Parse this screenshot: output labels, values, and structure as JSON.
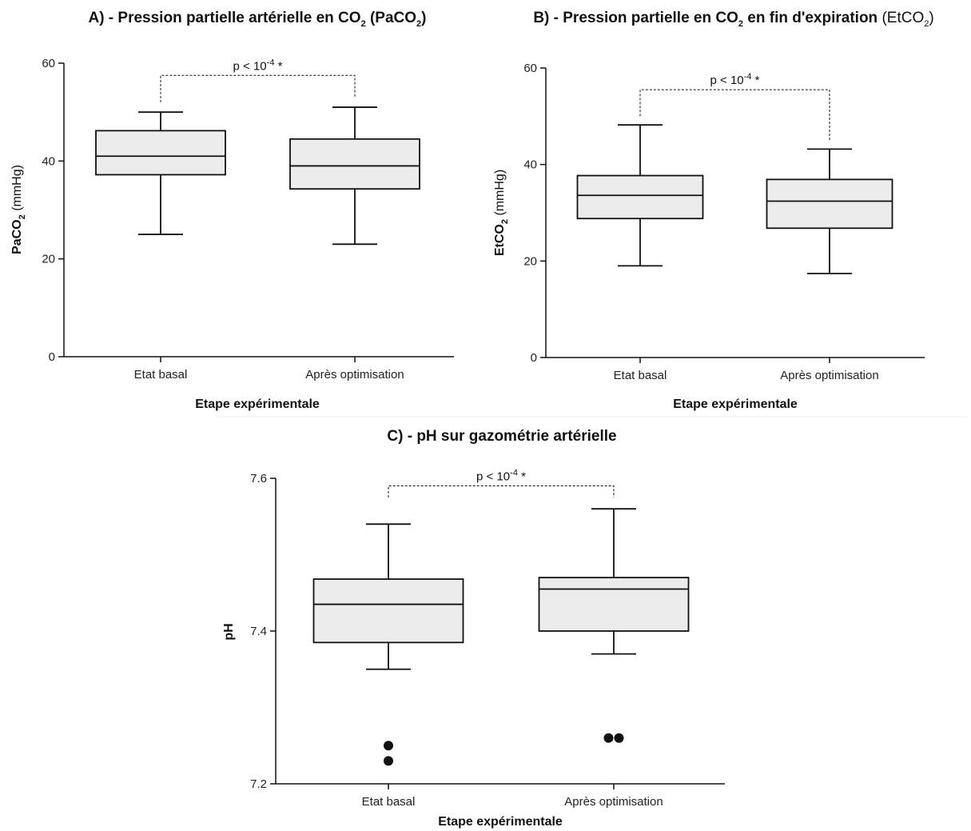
{
  "colors": {
    "box_fill": "#ececec",
    "stroke": "#111111",
    "divider": "#eeeeee"
  },
  "chart_data": [
    {
      "id": "A",
      "type": "box",
      "title": {
        "prefix": "A) - Pression partielle artérielle en CO",
        "sub": "2",
        "suffix": " (PaCO",
        "sub2": "2",
        "close": ")"
      },
      "xlabel": "Etape expérimentale",
      "ylabel": {
        "bold": "PaCO",
        "sub": "2",
        "regular": " (mmHg)"
      },
      "ylim": [
        0,
        60
      ],
      "yticks": [
        "0",
        "20",
        "40",
        "60"
      ],
      "ytick_values": [
        0,
        20,
        40,
        60
      ],
      "categories": [
        "Etat basal",
        "Après optimisation"
      ],
      "boxes": [
        {
          "category": "Etat basal",
          "whisker_low": 25,
          "q1": 37.2,
          "median": 41,
          "q3": 46.2,
          "whisker_high": 50,
          "outliers": []
        },
        {
          "category": "Après optimisation",
          "whisker_low": 23,
          "q1": 34.3,
          "median": 39,
          "q3": 44.5,
          "whisker_high": 51,
          "outliers": []
        }
      ],
      "significance": {
        "base": "p < 10",
        "exp": "-4",
        "tail": " *",
        "y": 57.5,
        "drop_to": [
          52,
          53
        ]
      }
    },
    {
      "id": "B",
      "type": "box",
      "title": {
        "prefix": "B) - Pression partielle en CO",
        "sub": "2",
        "suffix": " en fin d'expiration ",
        "paren": "(EtCO",
        "sub2": "2",
        "close": ")"
      },
      "xlabel": "Etape expérimentale",
      "ylabel": {
        "bold": "EtCO",
        "sub": "2",
        "regular": " (mmHg)"
      },
      "ylim": [
        0,
        60
      ],
      "yticks": [
        "0",
        "20",
        "40",
        "60"
      ],
      "ytick_values": [
        0,
        20,
        40,
        60
      ],
      "categories": [
        "Etat basal",
        "Après optimisation"
      ],
      "boxes": [
        {
          "category": "Etat basal",
          "whisker_low": 19,
          "q1": 28.8,
          "median": 33.6,
          "q3": 37.7,
          "whisker_high": 48.2,
          "outliers": []
        },
        {
          "category": "Après optimisation",
          "whisker_low": 17.4,
          "q1": 26.8,
          "median": 32.4,
          "q3": 36.9,
          "whisker_high": 43.2,
          "outliers": []
        }
      ],
      "significance": {
        "base": "p < 10",
        "exp": "-4",
        "tail": " *",
        "y": 55.5,
        "drop_to": [
          50,
          45
        ]
      }
    },
    {
      "id": "C",
      "type": "box",
      "title": {
        "prefix": "C) - pH sur gazométrie artérielle"
      },
      "xlabel": "Etape expérimentale",
      "ylabel": {
        "bold": "pH",
        "sub": "",
        "regular": ""
      },
      "ylim": [
        7.2,
        7.6
      ],
      "yticks": [
        "7.2",
        "7.4",
        "7.6"
      ],
      "ytick_values": [
        7.2,
        7.4,
        7.6
      ],
      "categories": [
        "Etat basal",
        "Après optimisation"
      ],
      "boxes": [
        {
          "category": "Etat basal",
          "whisker_low": 7.35,
          "q1": 7.385,
          "median": 7.435,
          "q3": 7.468,
          "whisker_high": 7.54,
          "outliers": [
            7.25,
            7.23
          ]
        },
        {
          "category": "Après optimisation",
          "whisker_low": 7.37,
          "q1": 7.4,
          "median": 7.455,
          "q3": 7.47,
          "whisker_high": 7.56,
          "outliers": [
            7.26,
            7.26
          ]
        }
      ],
      "significance": {
        "base": "p < 10",
        "exp": "-4",
        "tail": " *",
        "y": 7.59,
        "drop_to": [
          7.575,
          7.575
        ]
      }
    }
  ]
}
